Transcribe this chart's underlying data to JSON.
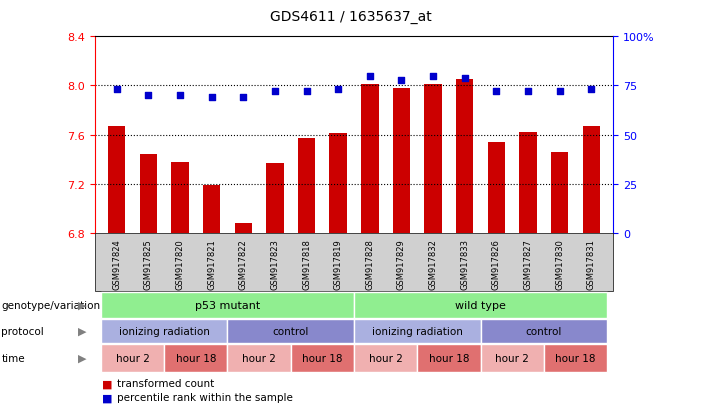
{
  "title": "GDS4611 / 1635637_at",
  "samples": [
    "GSM917824",
    "GSM917825",
    "GSM917820",
    "GSM917821",
    "GSM917822",
    "GSM917823",
    "GSM917818",
    "GSM917819",
    "GSM917828",
    "GSM917829",
    "GSM917832",
    "GSM917833",
    "GSM917826",
    "GSM917827",
    "GSM917830",
    "GSM917831"
  ],
  "bar_values": [
    7.67,
    7.44,
    7.38,
    7.19,
    6.88,
    7.37,
    7.57,
    7.61,
    8.01,
    7.98,
    8.01,
    8.05,
    7.54,
    7.62,
    7.46,
    7.67
  ],
  "dot_values": [
    73,
    70,
    70,
    69,
    69,
    72,
    72,
    73,
    80,
    78,
    80,
    79,
    72,
    72,
    72,
    73
  ],
  "ylim_left": [
    6.8,
    8.4
  ],
  "ylim_right": [
    0,
    100
  ],
  "yticks_left": [
    6.8,
    7.2,
    7.6,
    8.0,
    8.4
  ],
  "yticks_right": [
    0,
    25,
    50,
    75,
    100
  ],
  "bar_color": "#cc0000",
  "dot_color": "#0000cc",
  "gridline_y": [
    8.0,
    7.6,
    7.2
  ],
  "genotype_color": "#90ee90",
  "protocol_color_light": "#aab0e0",
  "protocol_color_dark": "#8888cc",
  "time_color_light": "#f0b0b0",
  "time_color_dark": "#e07070",
  "legend_red_label": "transformed count",
  "legend_blue_label": "percentile rank within the sample",
  "label_genotype": "genotype/variation",
  "label_protocol": "protocol",
  "label_time": "time",
  "xtick_bg": "#d0d0d0"
}
